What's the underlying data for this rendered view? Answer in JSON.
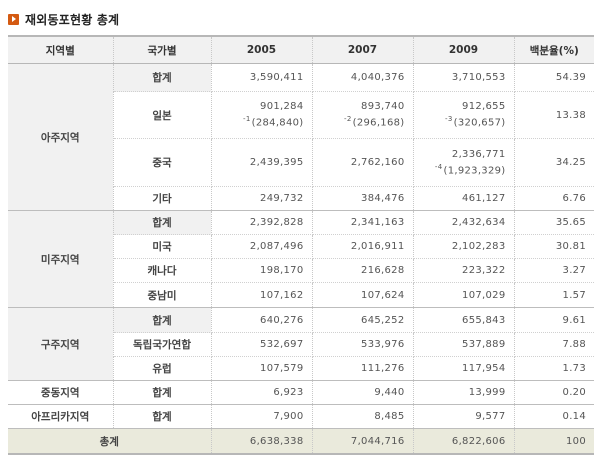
{
  "title": "재외동포현황 총계",
  "header": [
    "지역별",
    "국가별",
    "2005",
    "2007",
    "2009",
    "백분율(%)"
  ],
  "groups": [
    {
      "region": "아주지역",
      "rows": [
        {
          "country": "합계",
          "y2005": "3,590,411",
          "y2007": "4,040,376",
          "y2009": "3,710,553",
          "pct": "54.39"
        },
        {
          "country": "일본",
          "y2005": "901,284",
          "y2005_note_mark": "-1",
          "y2005_note": "(284,840)",
          "y2007": "893,740",
          "y2007_note_mark": "-2",
          "y2007_note": "(296,168)",
          "y2009": "912,655",
          "y2009_note_mark": "-3",
          "y2009_note": "(320,657)",
          "pct": "13.38"
        },
        {
          "country": "중국",
          "y2005": "2,439,395",
          "y2007": "2,762,160",
          "y2009": "2,336,771",
          "y2009_note_mark": "-4",
          "y2009_note": "(1,923,329)",
          "pct": "34.25"
        },
        {
          "country": "기타",
          "y2005": "249,732",
          "y2007": "384,476",
          "y2009": "461,127",
          "pct": "6.76"
        }
      ]
    },
    {
      "region": "미주지역",
      "rows": [
        {
          "country": "합계",
          "y2005": "2,392,828",
          "y2007": "2,341,163",
          "y2009": "2,432,634",
          "pct": "35.65"
        },
        {
          "country": "미국",
          "y2005": "2,087,496",
          "y2007": "2,016,911",
          "y2009": "2,102,283",
          "pct": "30.81"
        },
        {
          "country": "캐나다",
          "y2005": "198,170",
          "y2007": "216,628",
          "y2009": "223,322",
          "pct": "3.27"
        },
        {
          "country": "중남미",
          "y2005": "107,162",
          "y2007": "107,624",
          "y2009": "107,029",
          "pct": "1.57"
        }
      ]
    },
    {
      "region": "구주지역",
      "rows": [
        {
          "country": "합계",
          "y2005": "640,276",
          "y2007": "645,252",
          "y2009": "655,843",
          "pct": "9.61"
        },
        {
          "country": "독립국가연합",
          "y2005": "532,697",
          "y2007": "533,976",
          "y2009": "537,889",
          "pct": "7.88"
        },
        {
          "country": "유럽",
          "y2005": "107,579",
          "y2007": "111,276",
          "y2009": "117,954",
          "pct": "1.73"
        }
      ]
    },
    {
      "region": "중동지역",
      "rows": [
        {
          "country": "합계",
          "y2005": "6,923",
          "y2007": "9,440",
          "y2009": "13,999",
          "pct": "0.20"
        }
      ]
    },
    {
      "region": "아프리카지역",
      "rows": [
        {
          "country": "합계",
          "y2005": "7,900",
          "y2007": "8,485",
          "y2009": "9,577",
          "pct": "0.14"
        }
      ]
    }
  ],
  "total": {
    "label": "총계",
    "y2005": "6,638,338",
    "y2007": "7,044,716",
    "y2009": "6,822,606",
    "pct": "100"
  },
  "colors": {
    "header_bg": "#f1f1f1",
    "footer_bg": "#eaeadc",
    "icon": "#d45a12"
  }
}
